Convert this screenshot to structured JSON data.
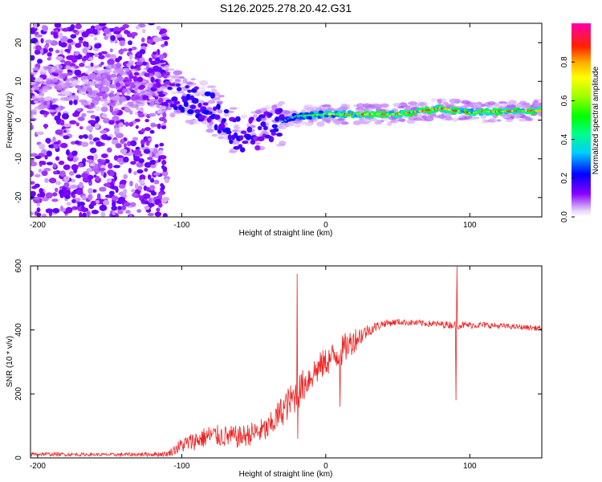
{
  "figure": {
    "title": "S126.2025.278.20.42.G31"
  },
  "chart_data": [
    {
      "type": "heatmap",
      "title": "S126.2025.278.20.42.G31",
      "xlabel": "Height of straight line (km)",
      "ylabel": "Frequency (Hz)",
      "xlim": [
        -205,
        150
      ],
      "ylim": [
        -25,
        25
      ],
      "x_ticks": [
        -200,
        -100,
        0,
        100
      ],
      "x_tick_labels": [
        "-200",
        "-100",
        "0",
        "100"
      ],
      "y_ticks": [
        -20,
        -10,
        0,
        10,
        20
      ],
      "y_tick_labels": [
        "-20",
        "-10",
        "0",
        "10",
        "20"
      ],
      "colorbar": {
        "label": "Normalized spectral amplitude",
        "range": [
          0,
          1
        ],
        "ticks": [
          0.0,
          0.2,
          0.4,
          0.6,
          0.8
        ],
        "tick_labels": [
          "0.0",
          "0.2",
          "0.4",
          "0.6",
          "0.8"
        ]
      },
      "ridge": {
        "description_points": [
          {
            "x": -150,
            "y": 8,
            "amp": 0.15
          },
          {
            "x": -120,
            "y": 10,
            "amp": 0.25
          },
          {
            "x": -100,
            "y": 6,
            "amp": 0.35
          },
          {
            "x": -80,
            "y": 3,
            "amp": 0.4
          },
          {
            "x": -60,
            "y": -4,
            "amp": 0.35
          },
          {
            "x": -45,
            "y": -3,
            "amp": 0.3
          },
          {
            "x": -35,
            "y": -1,
            "amp": 0.35
          },
          {
            "x": -20,
            "y": 1,
            "amp": 0.5
          },
          {
            "x": 0,
            "y": 1.5,
            "amp": 0.7
          },
          {
            "x": 20,
            "y": 1.5,
            "amp": 0.85
          },
          {
            "x": 50,
            "y": 1.5,
            "amp": 0.9
          },
          {
            "x": 80,
            "y": 3,
            "amp": 0.95
          },
          {
            "x": 100,
            "y": 2,
            "amp": 0.9
          },
          {
            "x": 150,
            "y": 2.5,
            "amp": 0.85
          }
        ]
      }
    },
    {
      "type": "line",
      "xlabel": "Height of straight line (km)",
      "ylabel": "SNR (10 * v/v)",
      "xlim": [
        -205,
        150
      ],
      "ylim": [
        0,
        600
      ],
      "x_ticks": [
        -200,
        -100,
        0,
        100
      ],
      "x_tick_labels": [
        "-200",
        "-100",
        "0",
        "100"
      ],
      "y_ticks": [
        0,
        200,
        400,
        600
      ],
      "y_tick_labels": [
        "0",
        "200",
        "400",
        "600"
      ],
      "series": [
        {
          "name": "SNR",
          "color": "#ee2222",
          "envelope": {
            "x": [
              -205,
              -150,
              -110,
              -100,
              -80,
              -60,
              -40,
              -30,
              -20,
              -10,
              0,
              10,
              20,
              30,
              40,
              50,
              70,
              90,
              110,
              130,
              150
            ],
            "mean": [
              12,
              10,
              12,
              40,
              70,
              65,
              90,
              150,
              200,
              260,
              300,
              330,
              370,
              400,
              420,
              425,
              420,
              415,
              415,
              410,
              405
            ],
            "noise": [
              6,
              5,
              8,
              25,
              35,
              35,
              40,
              50,
              55,
              50,
              45,
              50,
              40,
              20,
              12,
              10,
              10,
              12,
              10,
              8,
              8
            ]
          },
          "spikes": [
            {
              "x": -20,
              "y": 575
            },
            {
              "x": -19.5,
              "y": 60
            },
            {
              "x": 10,
              "y": 160
            },
            {
              "x": 91,
              "y": 598
            },
            {
              "x": 90.5,
              "y": 180
            }
          ]
        }
      ]
    }
  ],
  "colors": {
    "axis": "#000000",
    "snr_line": "#ee2222"
  }
}
